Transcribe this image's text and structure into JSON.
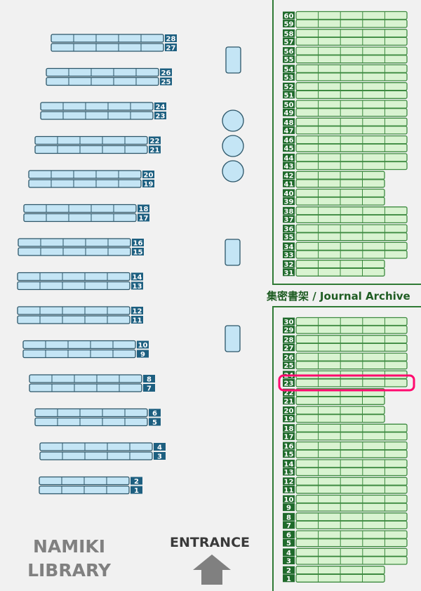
{
  "library_name": [
    "NAMIKI",
    "LIBRARY"
  ],
  "entrance_label": "ENTRANCE",
  "archive_title": "集密書架 / Journal Archive",
  "highlighted_shelf": "23",
  "colors": {
    "open_shelf_fill": "#c4e5f5",
    "open_shelf_border": "#2b5568",
    "open_shelf_label": "#1d5f80",
    "archive_shelf_fill": "#d9f3d1",
    "archive_shelf_border": "#3d8a40",
    "archive_shelf_label": "#1f6a2b",
    "archive_wall": "#2f7a35",
    "highlight": "#ff0a6e",
    "background": "#f1f1f1"
  },
  "open_shelves": [
    {
      "pair": [
        "28",
        "27"
      ],
      "sections": 5
    },
    {
      "pair": [
        "26",
        "25"
      ],
      "sections": 5
    },
    {
      "pair": [
        "24",
        "23"
      ],
      "sections": 5
    },
    {
      "pair": [
        "22",
        "21"
      ],
      "sections": 5
    },
    {
      "pair": [
        "20",
        "19"
      ],
      "sections": 5
    },
    {
      "pair": [
        "18",
        "17"
      ],
      "sections": 5
    },
    {
      "pair": [
        "16",
        "15"
      ],
      "sections": 5
    },
    {
      "pair": [
        "14",
        "13"
      ],
      "sections": 5
    },
    {
      "pair": [
        "12",
        "11"
      ],
      "sections": 5
    },
    {
      "pair": [
        "10",
        "9"
      ],
      "sections": 5
    },
    {
      "pair": [
        "8",
        "7"
      ],
      "sections": 5
    },
    {
      "pair": [
        "6",
        "5"
      ],
      "sections": 5
    },
    {
      "pair": [
        "4",
        "3"
      ],
      "sections": 5
    },
    {
      "pair": [
        "2",
        "1"
      ],
      "sections": 4
    }
  ],
  "archive_upper": [
    {
      "pair": [
        "60",
        "59"
      ],
      "sections": 5
    },
    {
      "pair": [
        "58",
        "57"
      ],
      "sections": 5
    },
    {
      "pair": [
        "56",
        "55"
      ],
      "sections": 5
    },
    {
      "pair": [
        "54",
        "53"
      ],
      "sections": 5
    },
    {
      "pair": [
        "52",
        "51"
      ],
      "sections": 5
    },
    {
      "pair": [
        "50",
        "49"
      ],
      "sections": 5
    },
    {
      "pair": [
        "48",
        "47"
      ],
      "sections": 5
    },
    {
      "pair": [
        "46",
        "45"
      ],
      "sections": 5
    },
    {
      "pair": [
        "44",
        "43"
      ],
      "sections": 5
    },
    {
      "pair": [
        "42",
        "41"
      ],
      "sections": 4
    },
    {
      "pair": [
        "40",
        "39"
      ],
      "sections": 4
    },
    {
      "pair": [
        "38",
        "37"
      ],
      "sections": 5
    },
    {
      "pair": [
        "36",
        "35"
      ],
      "sections": 5
    },
    {
      "pair": [
        "34",
        "33"
      ],
      "sections": 5
    },
    {
      "pair": [
        "32",
        "31"
      ],
      "sections": 4
    }
  ],
  "archive_lower": [
    {
      "pair": [
        "30",
        "29"
      ],
      "sections": 5
    },
    {
      "pair": [
        "28",
        "27"
      ],
      "sections": 5
    },
    {
      "pair": [
        "26",
        "25"
      ],
      "sections": 5
    },
    {
      "pair": [
        "24",
        "23"
      ],
      "sections": 5
    },
    {
      "pair": [
        "22",
        "21"
      ],
      "sections": 4
    },
    {
      "pair": [
        "20",
        "19"
      ],
      "sections": 4
    },
    {
      "pair": [
        "18",
        "17"
      ],
      "sections": 5
    },
    {
      "pair": [
        "16",
        "15"
      ],
      "sections": 5
    },
    {
      "pair": [
        "14",
        "13"
      ],
      "sections": 5
    },
    {
      "pair": [
        "12",
        "11"
      ],
      "sections": 5
    },
    {
      "pair": [
        "10",
        "9"
      ],
      "sections": 5
    },
    {
      "pair": [
        "8",
        "7"
      ],
      "sections": 5
    },
    {
      "pair": [
        "6",
        "5"
      ],
      "sections": 5
    },
    {
      "pair": [
        "4",
        "3"
      ],
      "sections": 5
    },
    {
      "pair": [
        "2",
        "1"
      ],
      "sections": 4
    }
  ],
  "tables": [
    {
      "shape": "rect"
    },
    {
      "shape": "circle"
    },
    {
      "shape": "circle"
    },
    {
      "shape": "circle"
    },
    {
      "shape": "rect"
    },
    {
      "shape": "rect"
    }
  ]
}
